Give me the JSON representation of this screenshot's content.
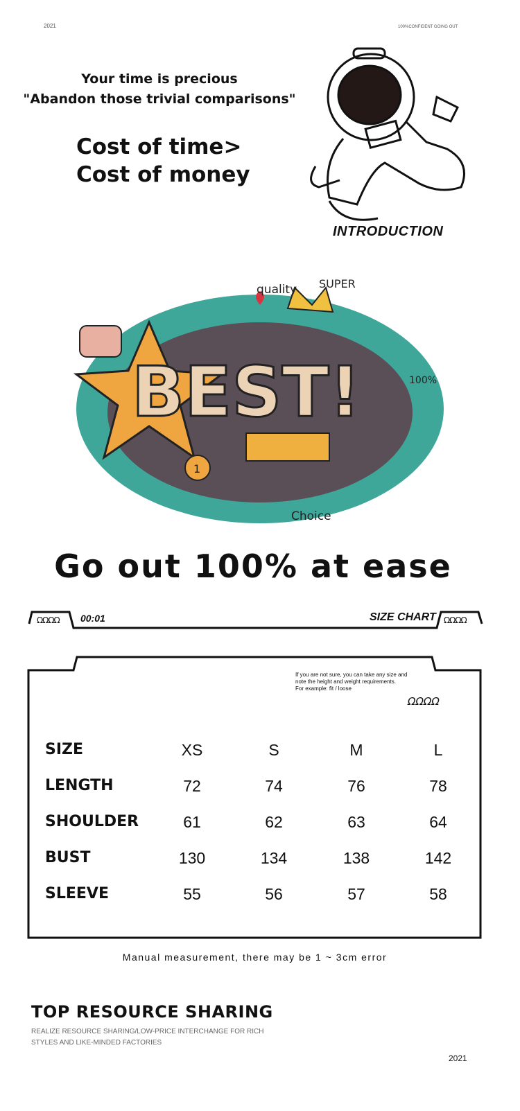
{
  "header": {
    "year": "2021",
    "tagline": "100%CONFIDENT GOING OUT"
  },
  "intro": {
    "line1": "Your time is precious",
    "line2": "\"Abandon those trivial comparisons\"",
    "cost1": "Cost of time>",
    "cost2": "Cost of money",
    "label": "INTRODUCTION"
  },
  "doodle": {
    "words": [
      "BEST!",
      "quality",
      "SUPER",
      "100%",
      "Choice",
      "1"
    ]
  },
  "slogan": "Go out 100% at ease",
  "size_chart": {
    "time": "00:01",
    "title": "SIZE CHART",
    "deco": "ΩΩΩΩ",
    "note": [
      "If you are not sure, you can take any size and",
      "note the height and weight requirements.",
      "For example: fit / loose"
    ],
    "columns": [
      "SIZE",
      "XS",
      "S",
      "M",
      "L"
    ],
    "rows": [
      {
        "label": "LENGTH",
        "values": [
          "72",
          "74",
          "76",
          "78"
        ]
      },
      {
        "label": "SHOULDER",
        "values": [
          "61",
          "62",
          "63",
          "64"
        ]
      },
      {
        "label": "BUST",
        "values": [
          "130",
          "134",
          "138",
          "142"
        ]
      },
      {
        "label": "SLEEVE",
        "values": [
          "55",
          "56",
          "57",
          "58"
        ]
      }
    ],
    "footnote": "Manual measurement, there may be 1 ~ 3cm error"
  },
  "footer": {
    "title": "TOP RESOURCE SHARING",
    "sub1": "REALIZE RESOURCE SHARING/LOW-PRICE INTERCHANGE FOR RICH",
    "sub2": "STYLES AND LIKE-MINDED FACTORIES",
    "year": "2021"
  },
  "colors": {
    "teal": "#3fa79a",
    "orange": "#f0a640",
    "pink": "#e8b0a0",
    "red": "#d9343f"
  }
}
